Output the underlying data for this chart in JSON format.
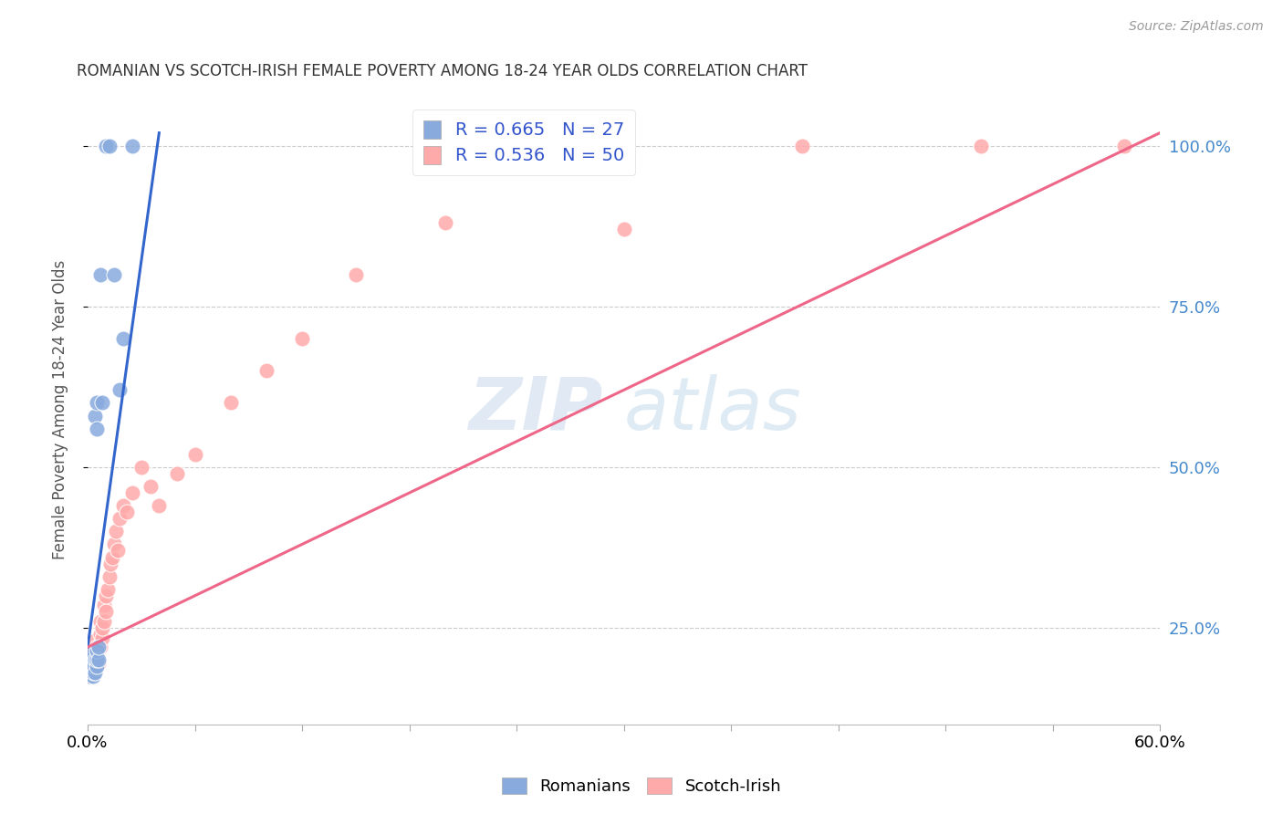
{
  "title": "ROMANIAN VS SCOTCH-IRISH FEMALE POVERTY AMONG 18-24 YEAR OLDS CORRELATION CHART",
  "source": "Source: ZipAtlas.com",
  "ylabel": "Female Poverty Among 18-24 Year Olds",
  "ytick_values": [
    0.25,
    0.5,
    0.75,
    1.0
  ],
  "watermark_zip": "ZIP",
  "watermark_atlas": "atlas",
  "legend_blue_label": "R = 0.665   N = 27",
  "legend_pink_label": "R = 0.536   N = 50",
  "legend_label_romanians": "Romanians",
  "legend_label_scotch": "Scotch-Irish",
  "blue_scatter_color": "#88AADD",
  "pink_scatter_color": "#FFAAAA",
  "blue_line_color": "#3366CC",
  "pink_line_color": "#EE6688",
  "legend_text_color": "#3355CC",
  "background_color": "#FFFFFF",
  "grid_color": "#CCCCCC",
  "right_tick_color": "#4488CC",
  "xmin": 0.0,
  "xmax": 0.6,
  "ymin": 0.1,
  "ymax": 1.08,
  "romanian_x": [
    0.001,
    0.001,
    0.002,
    0.002,
    0.002,
    0.003,
    0.003,
    0.003,
    0.003,
    0.004,
    0.004,
    0.004,
    0.005,
    0.005,
    0.005,
    0.005,
    0.005,
    0.006,
    0.006,
    0.007,
    0.008,
    0.01,
    0.012,
    0.015,
    0.018,
    0.02,
    0.025
  ],
  "romanian_y": [
    0.19,
    0.175,
    0.185,
    0.19,
    0.2,
    0.175,
    0.18,
    0.19,
    0.21,
    0.18,
    0.2,
    0.58,
    0.19,
    0.2,
    0.215,
    0.56,
    0.6,
    0.2,
    0.22,
    0.8,
    0.6,
    1.0,
    1.0,
    0.8,
    0.62,
    0.7,
    1.0
  ],
  "scotch_x": [
    0.001,
    0.001,
    0.002,
    0.002,
    0.003,
    0.003,
    0.003,
    0.004,
    0.004,
    0.004,
    0.005,
    0.005,
    0.005,
    0.006,
    0.006,
    0.007,
    0.007,
    0.007,
    0.008,
    0.008,
    0.009,
    0.009,
    0.01,
    0.01,
    0.011,
    0.012,
    0.013,
    0.014,
    0.015,
    0.016,
    0.017,
    0.018,
    0.02,
    0.022,
    0.025,
    0.03,
    0.035,
    0.04,
    0.05,
    0.06,
    0.08,
    0.1,
    0.12,
    0.15,
    0.2,
    0.25,
    0.3,
    0.4,
    0.5,
    0.58
  ],
  "scotch_y": [
    0.175,
    0.19,
    0.185,
    0.2,
    0.18,
    0.195,
    0.215,
    0.19,
    0.215,
    0.23,
    0.19,
    0.2,
    0.22,
    0.195,
    0.215,
    0.22,
    0.24,
    0.26,
    0.235,
    0.25,
    0.26,
    0.285,
    0.275,
    0.3,
    0.31,
    0.33,
    0.35,
    0.36,
    0.38,
    0.4,
    0.37,
    0.42,
    0.44,
    0.43,
    0.46,
    0.5,
    0.47,
    0.44,
    0.49,
    0.52,
    0.6,
    0.65,
    0.7,
    0.8,
    0.88,
    1.0,
    0.87,
    1.0,
    1.0,
    1.0
  ],
  "blue_line_x": [
    0.0,
    0.04
  ],
  "blue_line_y": [
    0.22,
    1.02
  ],
  "pink_line_x": [
    0.0,
    0.6
  ],
  "pink_line_y": [
    0.22,
    1.02
  ]
}
